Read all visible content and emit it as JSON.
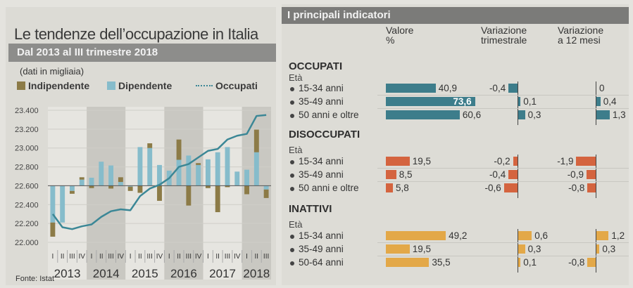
{
  "left": {
    "title": "Le tendenze dell’occupazione in Italia",
    "subtitle": "Dal 2013 al III trimestre 2018",
    "unit": "(dati in migliaia)",
    "source": "Fonte: Istat"
  },
  "chart_data": {
    "type": "bar",
    "title": "Le tendenze dell’occupazione in Italia",
    "subtitle": "Dal 2013 al III trimestre 2018",
    "ylabel": "(dati in migliaia)",
    "ylim": [
      22000,
      23400
    ],
    "yticks": [
      "22.000",
      "22.200",
      "22.400",
      "22.600",
      "22.800",
      "23.000",
      "23.200",
      "23.400"
    ],
    "bar_baseline": 22600,
    "legend": [
      "Indipendente",
      "Dipendente",
      "Occupati"
    ],
    "legend_position": "top",
    "colors": {
      "Indipendente": "#8c7b47",
      "Dipendente": "#86bccb",
      "Occupati": "#3b8796"
    },
    "years": [
      "2013",
      "2014",
      "2015",
      "2016",
      "2017",
      "2018"
    ],
    "categories": [
      "I",
      "II",
      "III",
      "IV",
      "I",
      "II",
      "III",
      "IV",
      "I",
      "II",
      "III",
      "IV",
      "I",
      "II",
      "III",
      "IV",
      "I",
      "II",
      "III",
      "IV",
      "I",
      "II",
      "III"
    ],
    "series": [
      {
        "name": "Dipendente",
        "type": "bar",
        "values": [
          -390,
          -390,
          -55,
          65,
          85,
          255,
          215,
          40,
          -10,
          410,
          400,
          220,
          160,
          275,
          320,
          220,
          280,
          355,
          410,
          150,
          170,
          355,
          -40
        ]
      },
      {
        "name": "Indipendente",
        "type": "bar",
        "values": [
          -150,
          0,
          -30,
          25,
          -25,
          0,
          -30,
          50,
          -45,
          -75,
          50,
          -160,
          0,
          215,
          -210,
          20,
          -25,
          -280,
          -15,
          0,
          -90,
          240,
          -90
        ]
      },
      {
        "name": "Occupati",
        "type": "line",
        "values": [
          22300,
          22160,
          22140,
          22170,
          22190,
          22270,
          22330,
          22350,
          22340,
          22490,
          22570,
          22610,
          22680,
          22800,
          22830,
          22900,
          22970,
          22990,
          23090,
          23130,
          23150,
          23340,
          23350
        ]
      }
    ]
  },
  "right": {
    "title": "I principali indicatori",
    "col_valore": [
      "Valore",
      "%"
    ],
    "col_trim": [
      "Variazione",
      "trimestrale"
    ],
    "col_12": [
      "Variazione",
      "a 12 mesi"
    ],
    "eta_label": "Età",
    "sections": [
      {
        "name": "OCCUPATI",
        "color": "#3d7d8b",
        "rows": [
          {
            "label": "15-34 anni",
            "valore": "40,9",
            "trim": "-0,4",
            "m12": "0"
          },
          {
            "label": "35-49 anni",
            "valore": "73,6",
            "trim": "0,1",
            "m12": "0,4"
          },
          {
            "label": "50 anni e oltre",
            "valore": "60,6",
            "trim": "0,3",
            "m12": "1,3"
          }
        ]
      },
      {
        "name": "DISOCCUPATI",
        "color": "#d4643f",
        "rows": [
          {
            "label": "15-34 anni",
            "valore": "19,5",
            "trim": "-0,2",
            "m12": "-1,9"
          },
          {
            "label": "35-49 anni",
            "valore": "8,5",
            "trim": "-0,4",
            "m12": "-0,9"
          },
          {
            "label": "50 anni e oltre",
            "valore": "5,8",
            "trim": "-0,6",
            "m12": "-0,8"
          }
        ]
      },
      {
        "name": "INATTIVI",
        "color": "#e3a848",
        "rows": [
          {
            "label": "15-34 anni",
            "valore": "49,2",
            "trim": "0,6",
            "m12": "1,2"
          },
          {
            "label": "35-49 anni",
            "valore": "19,5",
            "trim": "0,3",
            "m12": "0,3"
          },
          {
            "label": "50-64 anni",
            "valore": "35,5",
            "trim": "0,1",
            "m12": "-0,8"
          }
        ]
      }
    ]
  }
}
